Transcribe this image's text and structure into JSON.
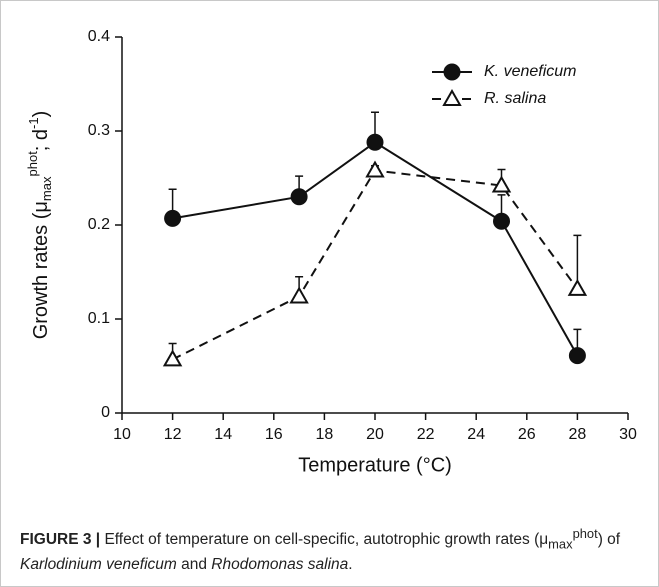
{
  "chart_data": {
    "type": "line",
    "x_label": "Temperature (°C)",
    "y_label_parts": [
      "Growth rates (μ",
      "max",
      "phot",
      "; d",
      "-1",
      ")"
    ],
    "x": [
      12,
      17,
      20,
      25,
      28
    ],
    "series": [
      {
        "name": "K. veneficum",
        "color": "#111111",
        "marker": "circle",
        "linestyle": "solid",
        "values": [
          0.207,
          0.23,
          0.288,
          0.204,
          0.061
        ],
        "errors": [
          0.031,
          0.022,
          0.032,
          0.028,
          0.028
        ]
      },
      {
        "name": "R. salina",
        "color": "#111111",
        "marker": "triangle",
        "linestyle": "dashed",
        "values": [
          0.057,
          0.124,
          0.258,
          0.242,
          0.132
        ],
        "errors": [
          0.017,
          0.021,
          0.005,
          0.017,
          0.057
        ]
      }
    ],
    "xlim": [
      10,
      30
    ],
    "xticks": [
      10,
      12,
      14,
      16,
      18,
      20,
      22,
      24,
      26,
      28,
      30
    ],
    "ylim": [
      0,
      0.4
    ],
    "yticks": [
      0,
      0.1,
      0.2,
      0.3,
      0.4
    ],
    "legend": "upper right"
  },
  "caption": [
    "FIGURE 3 |",
    " Effect of temperature on cell-specific, autotrophic growth rates (μ",
    "max",
    "phot",
    ") of ",
    "Karlodinium veneficum",
    " and ",
    "Rhodomonas salina",
    "."
  ]
}
